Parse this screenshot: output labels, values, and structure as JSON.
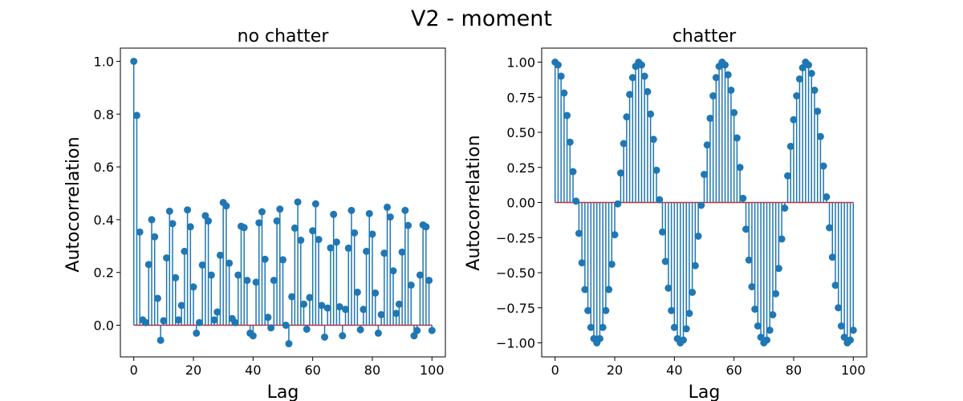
{
  "figure": {
    "title": "V2 - moment"
  },
  "colors": {
    "stem": "#1f77b4",
    "baseline": "#d62728",
    "axes": "#000000"
  },
  "chart_data": [
    {
      "type": "stem",
      "title": "no chatter",
      "xlabel": "Lag",
      "ylabel": "Autocorrelation",
      "xlim": [
        -4.5,
        104.5
      ],
      "ylim": [
        -0.12,
        1.05
      ],
      "xticks": [
        0,
        20,
        40,
        60,
        80,
        100
      ],
      "xtick_labels": [
        "0",
        "20",
        "40",
        "60",
        "80",
        "100"
      ],
      "yticks": [
        0.0,
        0.2,
        0.4,
        0.6,
        0.8,
        1.0
      ],
      "ytick_labels": [
        "0.0",
        "0.2",
        "0.4",
        "0.6",
        "0.8",
        "1.0"
      ],
      "baseline": 0,
      "values": [
        1.0,
        0.795,
        0.353,
        0.02,
        0.01,
        0.23,
        0.4,
        0.335,
        0.102,
        -0.057,
        0.017,
        0.255,
        0.432,
        0.385,
        0.18,
        0.02,
        0.075,
        0.28,
        0.437,
        0.373,
        0.145,
        -0.03,
        0.01,
        0.228,
        0.415,
        0.395,
        0.19,
        0.02,
        0.05,
        0.265,
        0.465,
        0.452,
        0.235,
        0.025,
        0.01,
        0.19,
        0.375,
        0.37,
        0.17,
        -0.03,
        -0.04,
        0.163,
        0.388,
        0.43,
        0.25,
        0.03,
        -0.01,
        0.17,
        0.395,
        0.44,
        0.248,
        0.0,
        -0.07,
        0.108,
        0.368,
        0.467,
        0.322,
        0.08,
        -0.015,
        0.105,
        0.358,
        0.46,
        0.325,
        0.075,
        -0.045,
        0.065,
        0.293,
        0.42,
        0.315,
        0.07,
        -0.04,
        0.06,
        0.292,
        0.435,
        0.35,
        0.125,
        -0.017,
        0.06,
        0.28,
        0.423,
        0.345,
        0.122,
        -0.03,
        0.04,
        0.273,
        0.447,
        0.41,
        0.206,
        0.045,
        0.08,
        0.277,
        0.435,
        0.378,
        0.152,
        -0.04,
        -0.02,
        0.19,
        0.38,
        0.373,
        0.17,
        -0.02
      ]
    },
    {
      "type": "stem",
      "title": "chatter",
      "xlabel": "Lag",
      "ylabel": "Autocorrelation",
      "xlim": [
        -4.5,
        104.5
      ],
      "ylim": [
        -1.1,
        1.1
      ],
      "xticks": [
        0,
        20,
        40,
        60,
        80,
        100
      ],
      "xtick_labels": [
        "0",
        "20",
        "40",
        "60",
        "80",
        "100"
      ],
      "yticks": [
        -1.0,
        -0.75,
        -0.5,
        -0.25,
        0.0,
        0.25,
        0.5,
        0.75,
        1.0
      ],
      "ytick_labels": [
        "−1.00",
        "−0.75",
        "−0.50",
        "−0.25",
        "0.00",
        "0.25",
        "0.50",
        "0.75",
        "1.00"
      ],
      "baseline": 0,
      "values": [
        1.0,
        0.98,
        0.9,
        0.78,
        0.62,
        0.43,
        0.22,
        0.01,
        -0.22,
        -0.43,
        -0.62,
        -0.77,
        -0.89,
        -0.97,
        -1.0,
        -0.97,
        -0.89,
        -0.77,
        -0.62,
        -0.44,
        -0.23,
        -0.01,
        0.21,
        0.42,
        0.61,
        0.77,
        0.89,
        0.97,
        1.0,
        0.98,
        0.9,
        0.79,
        0.63,
        0.45,
        0.23,
        0.02,
        -0.21,
        -0.42,
        -0.61,
        -0.77,
        -0.89,
        -0.97,
        -1.0,
        -0.98,
        -0.9,
        -0.79,
        -0.64,
        -0.45,
        -0.24,
        -0.02,
        0.2,
        0.41,
        0.6,
        0.76,
        0.89,
        0.97,
        1.0,
        0.98,
        0.91,
        0.8,
        0.64,
        0.46,
        0.25,
        0.03,
        -0.19,
        -0.41,
        -0.6,
        -0.76,
        -0.88,
        -0.96,
        -1.0,
        -0.98,
        -0.91,
        -0.8,
        -0.65,
        -0.47,
        -0.26,
        -0.04,
        0.19,
        0.4,
        0.59,
        0.76,
        0.88,
        0.96,
        1.0,
        0.98,
        0.92,
        0.8,
        0.65,
        0.47,
        0.26,
        0.04,
        -0.18,
        -0.39,
        -0.59,
        -0.75,
        -0.88,
        -0.96,
        -1.0,
        -0.98,
        -0.91
      ]
    }
  ]
}
